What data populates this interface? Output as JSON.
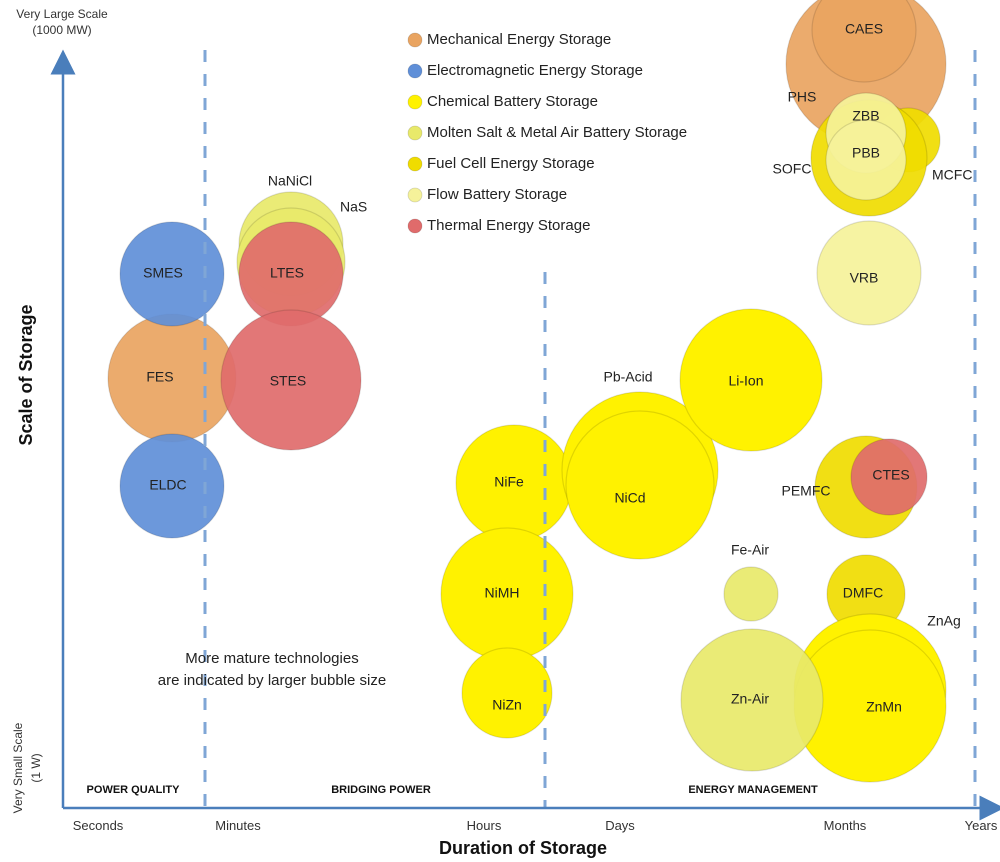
{
  "chart_data": {
    "type": "bubble",
    "title": "",
    "xlabel": "Duration of Storage",
    "ylabel": "Scale of Storage",
    "y_top_label": [
      "Very Large Scale",
      "(1000 MW)"
    ],
    "y_bottom_label": [
      "Very Small Scale",
      "(1 W)"
    ],
    "x_ticks": [
      "Seconds",
      "Minutes",
      "Hours",
      "Days",
      "Months",
      "Years"
    ],
    "regions": [
      "POWER QUALITY",
      "BRIDGING POWER",
      "ENERGY MANAGEMENT"
    ],
    "annotation": [
      "More mature technologies",
      "are indicated by larger bubble size"
    ],
    "legend": [
      {
        "label": "Mechanical Energy Storage",
        "color": "#E9A461"
      },
      {
        "label": "Electromagnetic Energy Storage",
        "color": "#5F8FD8"
      },
      {
        "label": "Chemical Battery Storage",
        "color": "#FFF200"
      },
      {
        "label": "Molten Salt & Metal Air Battery Storage",
        "color": "#E8E96A"
      },
      {
        "label": "Fuel Cell Energy Storage",
        "color": "#F0DC00"
      },
      {
        "label": "Flow Battery Storage",
        "color": "#F5F29A"
      },
      {
        "label": "Thermal Energy Storage",
        "color": "#E06B6B"
      }
    ],
    "bubbles": [
      {
        "label": "PHS",
        "category": 0
      },
      {
        "label": "CAES",
        "category": 0
      },
      {
        "label": "FES",
        "category": 0
      },
      {
        "label": "SMES",
        "category": 1
      },
      {
        "label": "ELDC",
        "category": 1
      },
      {
        "label": "NaS",
        "category": 3
      },
      {
        "label": "NaNiCl",
        "category": 3
      },
      {
        "label": "LTES",
        "category": 6
      },
      {
        "label": "STES",
        "category": 6
      },
      {
        "label": "NiFe",
        "category": 2
      },
      {
        "label": "NiMH",
        "category": 2
      },
      {
        "label": "NiZn",
        "category": 2
      },
      {
        "label": "Pb-Acid",
        "category": 2
      },
      {
        "label": "NiCd",
        "category": 2
      },
      {
        "label": "Li-Ion",
        "category": 2
      },
      {
        "label": "MCFC",
        "category": 4
      },
      {
        "label": "SOFC",
        "category": 4
      },
      {
        "label": "ZBB",
        "category": 5
      },
      {
        "label": "PBB",
        "category": 5
      },
      {
        "label": "VRB",
        "category": 5
      },
      {
        "label": "PEMFC",
        "category": 4
      },
      {
        "label": "CTES",
        "category": 6
      },
      {
        "label": "Fe-Air",
        "category": 3
      },
      {
        "label": "DMFC",
        "category": 4
      },
      {
        "label": "ZnAg",
        "category": 2
      },
      {
        "label": "ZnMn",
        "category": 2
      },
      {
        "label": "Zn-Air",
        "category": 3
      }
    ]
  }
}
